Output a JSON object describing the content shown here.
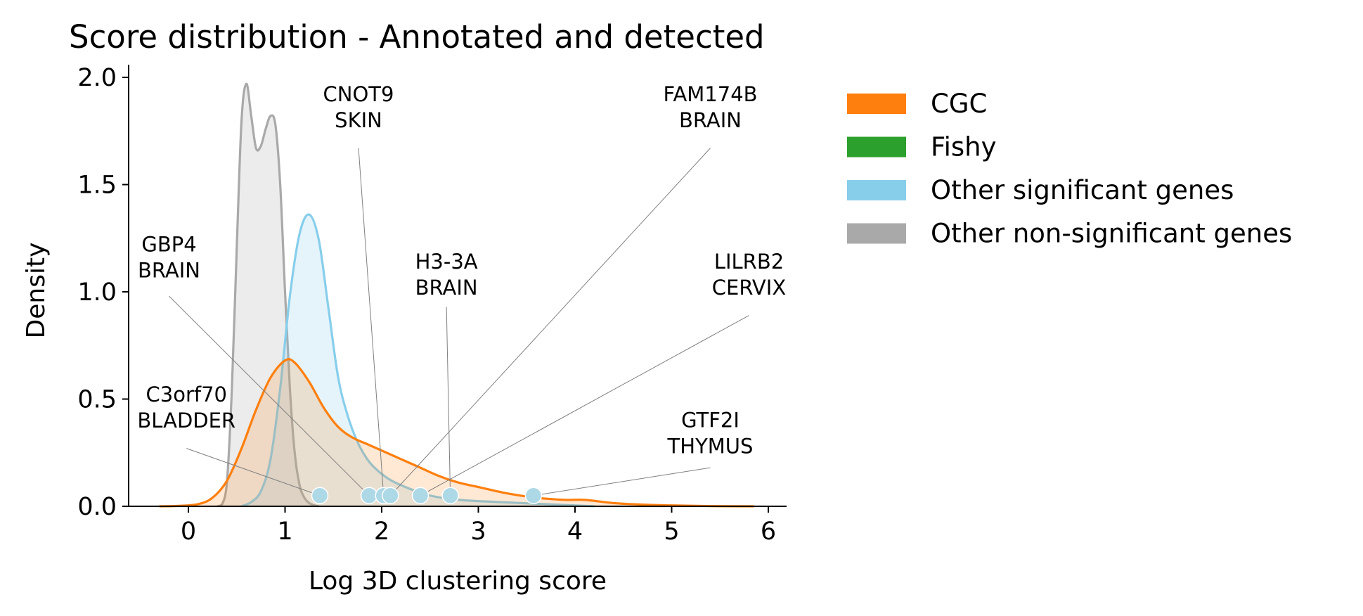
{
  "chart_data": {
    "type": "area",
    "title": "Score distribution - Annotated and detected",
    "xlabel": "Log 3D clustering score",
    "ylabel": "Density",
    "xlim": [
      -0.62,
      6.2
    ],
    "ylim": [
      0,
      2.07
    ],
    "x_ticks": [
      0,
      1,
      2,
      3,
      4,
      5,
      6
    ],
    "y_ticks": [
      0.0,
      0.5,
      1.0,
      1.5,
      2.0
    ],
    "x_tick_labels": [
      "0",
      "1",
      "2",
      "3",
      "4",
      "5",
      "6"
    ],
    "y_tick_labels": [
      "0.0",
      "0.5",
      "1.0",
      "1.5",
      "2.0"
    ],
    "grid": false,
    "legend_position": "outside-right",
    "legend": [
      {
        "label": "CGC",
        "color": "#ff7f0e"
      },
      {
        "label": "Fishy",
        "color": "#2ca02c"
      },
      {
        "label": "Other significant genes",
        "color": "#87ceeb"
      },
      {
        "label": "Other non-significant genes",
        "color": "#a9a9a9"
      }
    ],
    "series": [
      {
        "key": "other-non-significant",
        "color": "#a9a9a9",
        "fill_opacity": 0.22,
        "x": [
          0.3,
          0.35,
          0.4,
          0.45,
          0.5,
          0.55,
          0.6,
          0.65,
          0.7,
          0.75,
          0.8,
          0.85,
          0.9,
          0.95,
          1.0,
          1.05,
          1.1,
          1.15,
          1.2,
          1.25,
          1.3,
          1.35
        ],
        "y": [
          0.0,
          0.01,
          0.12,
          0.55,
          1.2,
          1.8,
          1.97,
          1.82,
          1.67,
          1.68,
          1.76,
          1.82,
          1.78,
          1.5,
          1.0,
          0.55,
          0.25,
          0.1,
          0.04,
          0.015,
          0.005,
          0.0
        ]
      },
      {
        "key": "other-significant",
        "color": "#87ceeb",
        "fill_opacity": 0.22,
        "x": [
          0.55,
          0.65,
          0.75,
          0.85,
          0.95,
          1.05,
          1.15,
          1.25,
          1.35,
          1.45,
          1.55,
          1.65,
          1.75,
          1.85,
          1.95,
          2.1,
          2.3,
          2.5,
          2.8,
          3.2,
          3.7,
          4.2
        ],
        "y": [
          0.0,
          0.02,
          0.07,
          0.22,
          0.55,
          0.98,
          1.27,
          1.36,
          1.24,
          0.92,
          0.6,
          0.42,
          0.3,
          0.22,
          0.17,
          0.12,
          0.08,
          0.05,
          0.03,
          0.02,
          0.01,
          0.0
        ]
      },
      {
        "key": "cgc",
        "color": "#ff7f0e",
        "fill_opacity": 0.18,
        "x": [
          -0.3,
          -0.1,
          0.1,
          0.25,
          0.4,
          0.55,
          0.7,
          0.85,
          1.0,
          1.1,
          1.25,
          1.4,
          1.55,
          1.7,
          1.85,
          2.0,
          2.2,
          2.4,
          2.6,
          2.8,
          3.0,
          3.3,
          3.6,
          3.9,
          4.1,
          4.4,
          4.7,
          5.0,
          5.4,
          5.85
        ],
        "y": [
          0.0,
          0.002,
          0.01,
          0.04,
          0.12,
          0.27,
          0.45,
          0.6,
          0.68,
          0.67,
          0.58,
          0.46,
          0.37,
          0.32,
          0.29,
          0.26,
          0.22,
          0.18,
          0.14,
          0.11,
          0.09,
          0.06,
          0.04,
          0.03,
          0.03,
          0.015,
          0.008,
          0.004,
          0.001,
          0.0
        ]
      }
    ],
    "points": [
      {
        "x": 1.36,
        "y": 0.05,
        "gene": "C3orf70",
        "tissue": "BLADDER"
      },
      {
        "x": 1.87,
        "y": 0.05,
        "gene": "GBP4",
        "tissue": "BRAIN"
      },
      {
        "x": 2.02,
        "y": 0.05,
        "gene": "CNOT9",
        "tissue": "SKIN"
      },
      {
        "x": 2.09,
        "y": 0.05,
        "gene": "FAM174B",
        "tissue": "BRAIN"
      },
      {
        "x": 2.4,
        "y": 0.05,
        "gene": "LILRB2",
        "tissue": "CERVIX"
      },
      {
        "x": 2.71,
        "y": 0.05,
        "gene": "H3-3A",
        "tissue": "BRAIN"
      },
      {
        "x": 3.57,
        "y": 0.05,
        "gene": "GTF2I",
        "tissue": "THYMUS"
      }
    ],
    "annotations": [
      {
        "gene": "CNOT9",
        "tissue": "SKIN",
        "text_x": 1.76,
        "text_y": 1.83,
        "line_start_y": 1.67,
        "target_index": 2
      },
      {
        "gene": "FAM174B",
        "tissue": "BRAIN",
        "text_x": 5.4,
        "text_y": 1.83,
        "line_start_y": 1.67,
        "target_index": 3
      },
      {
        "gene": "GBP4",
        "tissue": "BRAIN",
        "text_x": -0.2,
        "text_y": 1.13,
        "line_start_y": 0.98,
        "target_index": 1
      },
      {
        "gene": "H3-3A",
        "tissue": "BRAIN",
        "text_x": 2.67,
        "text_y": 1.05,
        "line_start_y": 0.93,
        "target_index": 5
      },
      {
        "gene": "LILRB2",
        "tissue": "CERVIX",
        "text_x": 5.8,
        "text_y": 1.05,
        "line_start_y": 0.89,
        "target_index": 4
      },
      {
        "gene": "C3orf70",
        "tissue": "BLADDER",
        "text_x": -0.02,
        "text_y": 0.43,
        "line_start_y": 0.27,
        "target_index": 0
      },
      {
        "gene": "GTF2I",
        "tissue": "THYMUS",
        "text_x": 5.4,
        "text_y": 0.31,
        "line_start_y": 0.18,
        "target_index": 6
      }
    ],
    "point_color": "#add8e6",
    "leader_line_color": "#808080"
  }
}
